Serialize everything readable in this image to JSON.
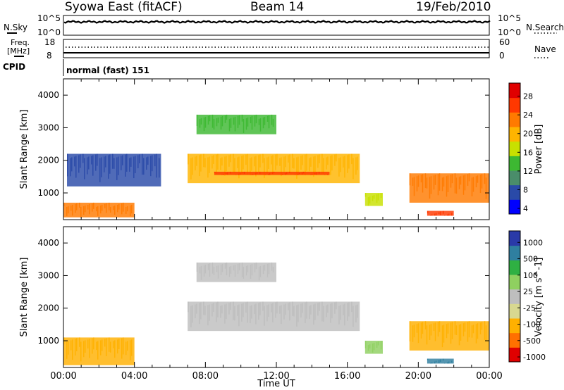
{
  "header": {
    "title": "Syowa East (fitACF)",
    "beam": "Beam 14",
    "date": "19/Feb/2010"
  },
  "noise_panel": {
    "left_label": "N.Sky",
    "right_label": "N.Search",
    "left_ticks": [
      "10^5",
      "10^0"
    ],
    "right_ticks": [
      "10^5",
      "10^0"
    ]
  },
  "freq_panel": {
    "left_label_1": "Freq.",
    "left_label_2": "[MHz]",
    "left_ticks": [
      "18",
      "8"
    ],
    "right_label": "Nave",
    "right_ticks": [
      "60",
      "0"
    ]
  },
  "cpid": {
    "label": "CPID",
    "value": "normal (fast) 151"
  },
  "colors": {
    "power_scale": [
      "#0000ff",
      "#2a4aa8",
      "#4a8d6a",
      "#3db832",
      "#c8e000",
      "#ffb400",
      "#ff7a00",
      "#ff3800",
      "#e00000"
    ],
    "velocity_scale": [
      "#2a3aa8",
      "#2f7fa0",
      "#2fb043",
      "#8fd060",
      "#bebebe",
      "#d8d890",
      "#ffb000",
      "#ff7000",
      "#e00000"
    ]
  },
  "chart_data": [
    {
      "type": "heatmap",
      "panel": "power",
      "ylabel": "Slant Range [km]",
      "ylim": [
        180,
        4500
      ],
      "yticks": [
        "1000",
        "2000",
        "3000",
        "4000"
      ],
      "colorbar_label": "Power [dB]",
      "colorbar_ticks": [
        "28",
        "24",
        "20",
        "16",
        "12",
        "8",
        "4"
      ],
      "colorbar_range": [
        0,
        30
      ],
      "features": [
        {
          "t_start": 0.0,
          "t_end": 4.0,
          "r_min": 250,
          "r_max": 700,
          "value": 22
        },
        {
          "t_start": 7.0,
          "t_end": 16.7,
          "r_min": 1300,
          "r_max": 2200,
          "value": 18
        },
        {
          "t_start": 8.5,
          "t_end": 15.0,
          "r_min": 1550,
          "r_max": 1650,
          "value": 26
        },
        {
          "t_start": 7.5,
          "t_end": 12.0,
          "r_min": 2800,
          "r_max": 3400,
          "value": 10
        },
        {
          "t_start": 0.2,
          "t_end": 5.5,
          "r_min": 1200,
          "r_max": 2200,
          "value": 6
        },
        {
          "t_start": 17.0,
          "t_end": 18.0,
          "r_min": 600,
          "r_max": 1000,
          "value": 14
        },
        {
          "t_start": 19.5,
          "t_end": 24.0,
          "r_min": 700,
          "r_max": 1600,
          "value": 20
        },
        {
          "t_start": 20.5,
          "t_end": 22.0,
          "r_min": 300,
          "r_max": 450,
          "value": 24
        }
      ]
    },
    {
      "type": "heatmap",
      "panel": "velocity",
      "xlabel": "Time UT",
      "ylabel": "Slant Range [km]",
      "ylim": [
        180,
        4500
      ],
      "yticks": [
        "1000",
        "2000",
        "3000",
        "4000"
      ],
      "xticks": [
        "00:00",
        "04:00",
        "08:00",
        "12:00",
        "16:00",
        "20:00",
        "00:00"
      ],
      "colorbar_label": "Velocity [m s^-1]",
      "colorbar_ticks": [
        "1000",
        "500",
        "100",
        "25",
        "-25",
        "-100",
        "-500",
        "-1000"
      ],
      "features": [
        {
          "t_start": 0.0,
          "t_end": 4.0,
          "r_min": 250,
          "r_max": 1100,
          "value": -300
        },
        {
          "t_start": 7.0,
          "t_end": 16.7,
          "r_min": 1300,
          "r_max": 2200,
          "value": 0
        },
        {
          "t_start": 7.5,
          "t_end": 12.0,
          "r_min": 2800,
          "r_max": 3400,
          "value": 0
        },
        {
          "t_start": 17.0,
          "t_end": 18.0,
          "r_min": 600,
          "r_max": 1000,
          "value": 80
        },
        {
          "t_start": 19.5,
          "t_end": 24.0,
          "r_min": 700,
          "r_max": 1600,
          "value": -200
        },
        {
          "t_start": 20.5,
          "t_end": 22.0,
          "r_min": 300,
          "r_max": 450,
          "value": 500
        }
      ]
    }
  ]
}
